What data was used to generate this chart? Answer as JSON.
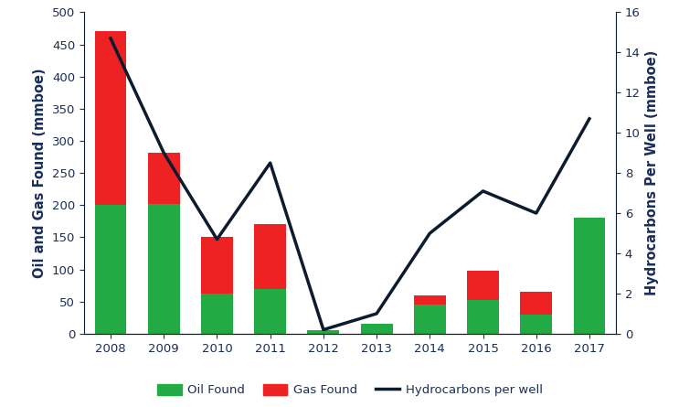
{
  "years": [
    2008,
    2009,
    2010,
    2011,
    2012,
    2013,
    2014,
    2015,
    2016,
    2017
  ],
  "oil_found": [
    200,
    202,
    63,
    70,
    5,
    15,
    45,
    53,
    30,
    180
  ],
  "gas_found": [
    270,
    80,
    88,
    100,
    0,
    0,
    15,
    45,
    35,
    0
  ],
  "hydrocarbons_per_well": [
    14.7,
    9.0,
    4.7,
    8.5,
    0.2,
    1.0,
    5.0,
    7.1,
    6.0,
    10.7
  ],
  "bar_color_oil": "#22aa44",
  "bar_color_gas": "#ee2222",
  "line_color": "#0d1b2e",
  "left_ylim": [
    0,
    500
  ],
  "right_ylim": [
    0,
    16
  ],
  "left_yticks": [
    0,
    50,
    100,
    150,
    200,
    250,
    300,
    350,
    400,
    450,
    500
  ],
  "right_yticks": [
    0,
    2,
    4,
    6,
    8,
    10,
    12,
    14,
    16
  ],
  "ylabel_left": "Oil and Gas Found (mmboe)",
  "ylabel_right": "Hydrocarbons Per Well (mmboe)",
  "legend_oil": "Oil Found",
  "legend_gas": "Gas Found",
  "legend_line": "Hydrocarbons per well",
  "axis_label_color": "#1a2e5a",
  "tick_label_color": "#1a2e5a",
  "background_color": "#ffffff",
  "bar_width": 0.6
}
